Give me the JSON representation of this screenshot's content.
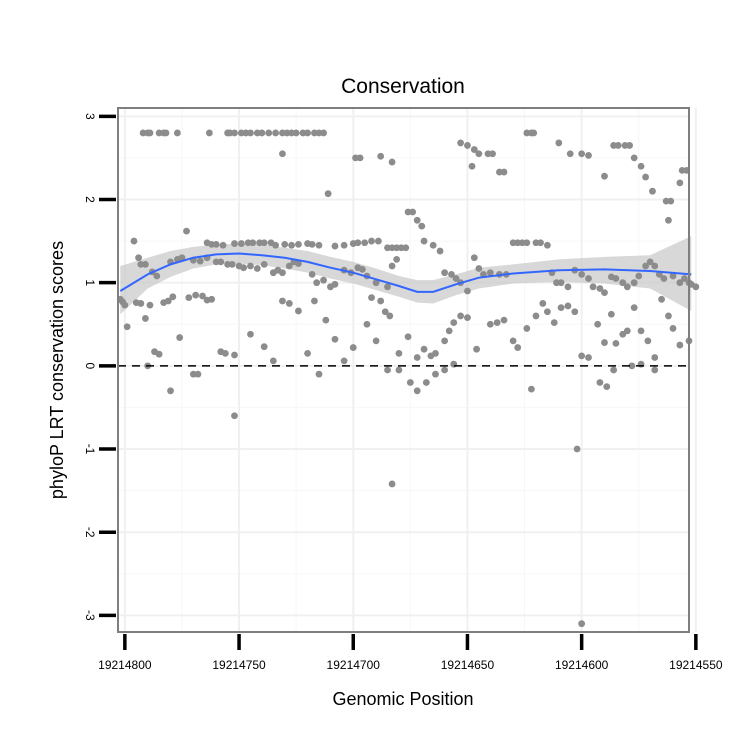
{
  "chart_data": {
    "type": "scatter",
    "title": "Conservation",
    "xlabel": "Genomic Position",
    "ylabel": "phyloP LRT conservation scores",
    "x_reversed": true,
    "xlim": [
      19214553,
      19214803
    ],
    "ylim": [
      -3.2,
      3.1
    ],
    "x_ticks": [
      19214800,
      19214750,
      19214700,
      19214650,
      19214600,
      19214550
    ],
    "x_tick_labels": [
      "19214800",
      "19214750",
      "19214700",
      "19214650",
      "19214600",
      "19214550"
    ],
    "y_ticks": [
      3,
      2,
      1,
      0,
      -1,
      -2,
      -3
    ],
    "y_tick_labels": [
      "3",
      "2",
      "1",
      "0",
      "-1",
      "-2",
      "-3"
    ],
    "reference_line": {
      "y": 0,
      "style": "dashed"
    },
    "point_color": "#8c8c8c",
    "smooth_color": "#3366ff",
    "ribbon_color": "#c8c8c8",
    "points": [
      [
        19214792,
        2.8
      ],
      [
        19214790,
        2.8
      ],
      [
        19214789,
        2.8
      ],
      [
        19214785,
        2.8
      ],
      [
        19214783,
        2.8
      ],
      [
        19214782,
        2.8
      ],
      [
        19214777,
        2.8
      ],
      [
        19214763,
        2.8
      ],
      [
        19214755,
        2.8
      ],
      [
        19214754,
        2.8
      ],
      [
        19214752,
        2.8
      ],
      [
        19214749,
        2.8
      ],
      [
        19214747,
        2.8
      ],
      [
        19214745,
        2.8
      ],
      [
        19214742,
        2.8
      ],
      [
        19214740,
        2.8
      ],
      [
        19214737,
        2.8
      ],
      [
        19214734,
        2.8
      ],
      [
        19214731,
        2.8
      ],
      [
        19214729,
        2.8
      ],
      [
        19214727,
        2.8
      ],
      [
        19214725,
        2.8
      ],
      [
        19214722,
        2.8
      ],
      [
        19214720,
        2.8
      ],
      [
        19214717,
        2.8
      ],
      [
        19214715,
        2.8
      ],
      [
        19214713,
        2.8
      ],
      [
        19214731,
        2.55
      ],
      [
        19214699,
        2.5
      ],
      [
        19214697,
        2.5
      ],
      [
        19214688,
        2.52
      ],
      [
        19214683,
        2.45
      ],
      [
        19214711,
        2.07
      ],
      [
        19214653,
        2.68
      ],
      [
        19214650,
        2.65
      ],
      [
        19214647,
        2.6
      ],
      [
        19214645,
        2.55
      ],
      [
        19214641,
        2.55
      ],
      [
        19214639,
        2.55
      ],
      [
        19214636,
        2.33
      ],
      [
        19214634,
        2.33
      ],
      [
        19214648,
        2.4
      ],
      [
        19214624,
        2.8
      ],
      [
        19214622,
        2.8
      ],
      [
        19214621,
        2.8
      ],
      [
        19214610,
        2.68
      ],
      [
        19214605,
        2.55
      ],
      [
        19214600,
        2.55
      ],
      [
        19214597,
        2.53
      ],
      [
        19214590,
        2.28
      ],
      [
        19214586,
        2.65
      ],
      [
        19214584,
        2.65
      ],
      [
        19214581,
        2.65
      ],
      [
        19214579,
        2.65
      ],
      [
        19214577,
        2.5
      ],
      [
        19214574,
        2.4
      ],
      [
        19214572,
        2.27
      ],
      [
        19214569,
        2.1
      ],
      [
        19214563,
        1.98
      ],
      [
        19214561,
        1.98
      ],
      [
        19214556,
        2.35
      ],
      [
        19214554,
        2.35
      ],
      [
        19214557,
        2.2
      ],
      [
        19214562,
        1.75
      ],
      [
        19214773,
        1.62
      ],
      [
        19214764,
        1.48
      ],
      [
        19214762,
        1.46
      ],
      [
        19214760,
        1.46
      ],
      [
        19214757,
        1.45
      ],
      [
        19214752,
        1.47
      ],
      [
        19214749,
        1.47
      ],
      [
        19214746,
        1.48
      ],
      [
        19214744,
        1.48
      ],
      [
        19214741,
        1.48
      ],
      [
        19214739,
        1.48
      ],
      [
        19214736,
        1.48
      ],
      [
        19214734,
        1.45
      ],
      [
        19214730,
        1.46
      ],
      [
        19214727,
        1.45
      ],
      [
        19214724,
        1.46
      ],
      [
        19214720,
        1.47
      ],
      [
        19214718,
        1.46
      ],
      [
        19214715,
        1.45
      ],
      [
        19214708,
        1.44
      ],
      [
        19214704,
        1.45
      ],
      [
        19214700,
        1.47
      ],
      [
        19214698,
        1.48
      ],
      [
        19214695,
        1.48
      ],
      [
        19214692,
        1.5
      ],
      [
        19214689,
        1.5
      ],
      [
        19214685,
        1.42
      ],
      [
        19214683,
        1.42
      ],
      [
        19214681,
        1.42
      ],
      [
        19214679,
        1.42
      ],
      [
        19214677,
        1.42
      ],
      [
        19214796,
        1.5
      ],
      [
        19214794,
        1.3
      ],
      [
        19214793,
        1.22
      ],
      [
        19214791,
        1.22
      ],
      [
        19214788,
        1.13
      ],
      [
        19214786,
        1.08
      ],
      [
        19214780,
        1.25
      ],
      [
        19214777,
        1.28
      ],
      [
        19214775,
        1.3
      ],
      [
        19214770,
        1.27
      ],
      [
        19214767,
        1.26
      ],
      [
        19214764,
        1.3
      ],
      [
        19214760,
        1.25
      ],
      [
        19214758,
        1.25
      ],
      [
        19214755,
        1.22
      ],
      [
        19214753,
        1.22
      ],
      [
        19214750,
        1.2
      ],
      [
        19214748,
        1.18
      ],
      [
        19214745,
        1.2
      ],
      [
        19214742,
        1.17
      ],
      [
        19214739,
        1.22
      ],
      [
        19214735,
        1.12
      ],
      [
        19214733,
        1.15
      ],
      [
        19214731,
        1.12
      ],
      [
        19214728,
        1.2
      ],
      [
        19214726,
        1.25
      ],
      [
        19214724,
        1.23
      ],
      [
        19214718,
        1.1
      ],
      [
        19214716,
        1.0
      ],
      [
        19214713,
        1.03
      ],
      [
        19214710,
        0.95
      ],
      [
        19214708,
        0.98
      ],
      [
        19214704,
        1.15
      ],
      [
        19214701,
        1.12
      ],
      [
        19214698,
        1.18
      ],
      [
        19214696,
        1.16
      ],
      [
        19214694,
        1.08
      ],
      [
        19214692,
        0.82
      ],
      [
        19214690,
        1.0
      ],
      [
        19214685,
        0.95
      ],
      [
        19214683,
        1.2
      ],
      [
        19214681,
        1.28
      ],
      [
        19214676,
        1.85
      ],
      [
        19214674,
        1.85
      ],
      [
        19214672,
        1.75
      ],
      [
        19214670,
        1.68
      ],
      [
        19214669,
        1.5
      ],
      [
        19214665,
        1.45
      ],
      [
        19214662,
        1.38
      ],
      [
        19214660,
        1.12
      ],
      [
        19214657,
        1.1
      ],
      [
        19214655,
        1.05
      ],
      [
        19214653,
        1.0
      ],
      [
        19214650,
        0.9
      ],
      [
        19214647,
        1.3
      ],
      [
        19214645,
        1.17
      ],
      [
        19214643,
        1.1
      ],
      [
        19214640,
        1.12
      ],
      [
        19214636,
        1.1
      ],
      [
        19214633,
        1.1
      ],
      [
        19214630,
        1.48
      ],
      [
        19214628,
        1.48
      ],
      [
        19214626,
        1.48
      ],
      [
        19214624,
        1.48
      ],
      [
        19214620,
        1.48
      ],
      [
        19214618,
        1.48
      ],
      [
        19214615,
        1.45
      ],
      [
        19214613,
        1.12
      ],
      [
        19214611,
        1.0
      ],
      [
        19214609,
        1.0
      ],
      [
        19214606,
        0.95
      ],
      [
        19214603,
        1.15
      ],
      [
        19214600,
        1.1
      ],
      [
        19214597,
        1.05
      ],
      [
        19214595,
        0.95
      ],
      [
        19214592,
        0.93
      ],
      [
        19214590,
        0.88
      ],
      [
        19214587,
        1.07
      ],
      [
        19214585,
        1.05
      ],
      [
        19214582,
        1.0
      ],
      [
        19214580,
        0.95
      ],
      [
        19214577,
        1.0
      ],
      [
        19214575,
        1.08
      ],
      [
        19214572,
        1.2
      ],
      [
        19214570,
        1.25
      ],
      [
        19214568,
        1.2
      ],
      [
        19214566,
        1.1
      ],
      [
        19214564,
        1.05
      ],
      [
        19214560,
        1.08
      ],
      [
        19214557,
        1.0
      ],
      [
        19214555,
        1.05
      ],
      [
        19214552,
        0.98
      ],
      [
        19214550,
        0.95
      ],
      [
        19214553,
        1.0
      ],
      [
        19214802,
        0.8
      ],
      [
        19214801,
        0.77
      ],
      [
        19214800,
        0.73
      ],
      [
        19214799,
        0.47
      ],
      [
        19214795,
        0.76
      ],
      [
        19214793,
        0.75
      ],
      [
        19214791,
        0.57
      ],
      [
        19214789,
        0.73
      ],
      [
        19214787,
        0.17
      ],
      [
        19214785,
        0.14
      ],
      [
        19214783,
        0.76
      ],
      [
        19214781,
        0.78
      ],
      [
        19214779,
        0.83
      ],
      [
        19214776,
        0.34
      ],
      [
        19214772,
        0.82
      ],
      [
        19214769,
        0.85
      ],
      [
        19214766,
        0.84
      ],
      [
        19214764,
        0.79
      ],
      [
        19214762,
        0.8
      ],
      [
        19214758,
        0.17
      ],
      [
        19214756,
        0.15
      ],
      [
        19214752,
        0.13
      ],
      [
        19214745,
        0.38
      ],
      [
        19214739,
        0.23
      ],
      [
        19214735,
        0.06
      ],
      [
        19214731,
        0.78
      ],
      [
        19214728,
        0.75
      ],
      [
        19214724,
        0.66
      ],
      [
        19214720,
        0.15
      ],
      [
        19214717,
        0.78
      ],
      [
        19214712,
        0.55
      ],
      [
        19214708,
        0.32
      ],
      [
        19214704,
        0.06
      ],
      [
        19214700,
        0.22
      ],
      [
        19214694,
        0.5
      ],
      [
        19214690,
        0.3
      ],
      [
        19214688,
        0.78
      ],
      [
        19214686,
        0.65
      ],
      [
        19214684,
        0.6
      ],
      [
        19214680,
        0.15
      ],
      [
        19214676,
        0.35
      ],
      [
        19214672,
        0.1
      ],
      [
        19214669,
        0.2
      ],
      [
        19214666,
        0.12
      ],
      [
        19214664,
        0.15
      ],
      [
        19214660,
        0.3
      ],
      [
        19214658,
        0.42
      ],
      [
        19214656,
        0.52
      ],
      [
        19214653,
        0.6
      ],
      [
        19214650,
        0.58
      ],
      [
        19214646,
        0.2
      ],
      [
        19214640,
        0.5
      ],
      [
        19214637,
        0.52
      ],
      [
        19214634,
        0.55
      ],
      [
        19214630,
        0.3
      ],
      [
        19214628,
        0.22
      ],
      [
        19214624,
        0.45
      ],
      [
        19214620,
        0.6
      ],
      [
        19214617,
        0.75
      ],
      [
        19214615,
        0.65
      ],
      [
        19214612,
        0.52
      ],
      [
        19214609,
        0.7
      ],
      [
        19214606,
        0.72
      ],
      [
        19214603,
        0.65
      ],
      [
        19214600,
        0.12
      ],
      [
        19214597,
        0.1
      ],
      [
        19214593,
        0.5
      ],
      [
        19214590,
        0.28
      ],
      [
        19214587,
        0.62
      ],
      [
        19214585,
        0.27
      ],
      [
        19214582,
        0.38
      ],
      [
        19214580,
        0.42
      ],
      [
        19214577,
        0.7
      ],
      [
        19214574,
        0.42
      ],
      [
        19214571,
        0.3
      ],
      [
        19214568,
        0.1
      ],
      [
        19214565,
        0.8
      ],
      [
        19214562,
        0.6
      ],
      [
        19214560,
        0.45
      ],
      [
        19214557,
        0.25
      ],
      [
        19214553,
        0.3
      ],
      [
        19214790,
        0.0
      ],
      [
        19214780,
        -0.3
      ],
      [
        19214770,
        -0.1
      ],
      [
        19214768,
        -0.1
      ],
      [
        19214715,
        -0.1
      ],
      [
        19214685,
        -0.05
      ],
      [
        19214680,
        -0.05
      ],
      [
        19214675,
        -0.2
      ],
      [
        19214672,
        -0.3
      ],
      [
        19214668,
        -0.2
      ],
      [
        19214664,
        -0.1
      ],
      [
        19214660,
        -0.05
      ],
      [
        19214656,
        0.02
      ],
      [
        19214622,
        -0.28
      ],
      [
        19214592,
        -0.2
      ],
      [
        19214589,
        -0.25
      ],
      [
        19214586,
        -0.05
      ],
      [
        19214578,
        0.0
      ],
      [
        19214574,
        0.02
      ],
      [
        19214568,
        -0.05
      ],
      [
        19214752,
        -0.6
      ],
      [
        19214683,
        -1.42
      ],
      [
        19214602,
        -1.0
      ],
      [
        19214600,
        -3.1
      ]
    ],
    "smooth": [
      [
        19214802,
        0.9
      ],
      [
        19214790,
        1.1
      ],
      [
        19214780,
        1.22
      ],
      [
        19214770,
        1.3
      ],
      [
        19214760,
        1.34
      ],
      [
        19214750,
        1.35
      ],
      [
        19214740,
        1.33
      ],
      [
        19214730,
        1.3
      ],
      [
        19214720,
        1.25
      ],
      [
        19214710,
        1.18
      ],
      [
        19214700,
        1.12
      ],
      [
        19214690,
        1.04
      ],
      [
        19214680,
        0.96
      ],
      [
        19214672,
        0.89
      ],
      [
        19214665,
        0.89
      ],
      [
        19214655,
        0.98
      ],
      [
        19214645,
        1.06
      ],
      [
        19214630,
        1.11
      ],
      [
        19214610,
        1.15
      ],
      [
        19214590,
        1.16
      ],
      [
        19214570,
        1.14
      ],
      [
        19214552,
        1.1
      ]
    ],
    "ribbon_upper": [
      [
        19214802,
        1.2
      ],
      [
        19214790,
        1.3
      ],
      [
        19214780,
        1.38
      ],
      [
        19214770,
        1.43
      ],
      [
        19214760,
        1.46
      ],
      [
        19214750,
        1.47
      ],
      [
        19214740,
        1.46
      ],
      [
        19214730,
        1.42
      ],
      [
        19214720,
        1.38
      ],
      [
        19214710,
        1.31
      ],
      [
        19214700,
        1.25
      ],
      [
        19214690,
        1.17
      ],
      [
        19214680,
        1.08
      ],
      [
        19214672,
        1.03
      ],
      [
        19214665,
        1.03
      ],
      [
        19214655,
        1.1
      ],
      [
        19214645,
        1.18
      ],
      [
        19214630,
        1.22
      ],
      [
        19214610,
        1.28
      ],
      [
        19214590,
        1.31
      ],
      [
        19214570,
        1.33
      ],
      [
        19214552,
        1.56
      ]
    ],
    "ribbon_lower": [
      [
        19214802,
        0.62
      ],
      [
        19214790,
        0.93
      ],
      [
        19214780,
        1.07
      ],
      [
        19214770,
        1.17
      ],
      [
        19214760,
        1.22
      ],
      [
        19214750,
        1.23
      ],
      [
        19214740,
        1.21
      ],
      [
        19214730,
        1.17
      ],
      [
        19214720,
        1.12
      ],
      [
        19214710,
        1.05
      ],
      [
        19214700,
        0.99
      ],
      [
        19214690,
        0.91
      ],
      [
        19214680,
        0.83
      ],
      [
        19214672,
        0.76
      ],
      [
        19214665,
        0.75
      ],
      [
        19214655,
        0.85
      ],
      [
        19214645,
        0.93
      ],
      [
        19214630,
        0.99
      ],
      [
        19214610,
        1.01
      ],
      [
        19214590,
        0.99
      ],
      [
        19214570,
        0.93
      ],
      [
        19214552,
        0.66
      ]
    ]
  }
}
